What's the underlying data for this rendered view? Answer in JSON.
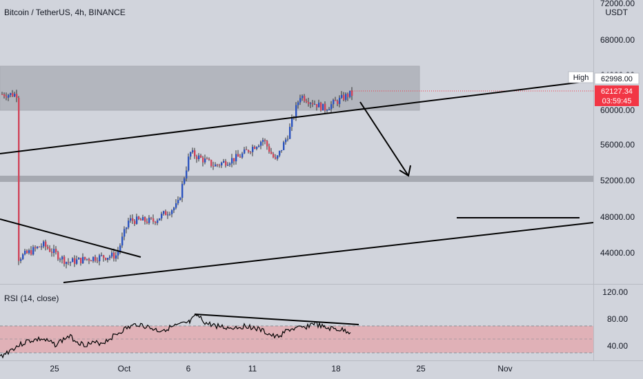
{
  "header": {
    "symbol_title": "Bitcoin / TetherUS, 4h, BINANCE"
  },
  "price_axis": {
    "currency_label": "USDT",
    "top_partial_label": "72000.00",
    "ticks": [
      "68000.00",
      "64000.00",
      "60000.00",
      "56000.00",
      "52000.00",
      "48000.00",
      "44000.00"
    ]
  },
  "badges": {
    "high_tag": "High",
    "high_value": "62998.00",
    "last_price": "62127.34",
    "countdown": "03:59:45"
  },
  "rsi": {
    "label": "RSI (14, close)",
    "ticks": [
      "120.00",
      "80.00",
      "40.00"
    ]
  },
  "time_axis": {
    "ticks": [
      "25",
      "Oct",
      "6",
      "11",
      "18",
      "25",
      "Nov"
    ]
  },
  "colors": {
    "background": "#d1d4dc",
    "up_candle": "#2a52be",
    "down_candle": "#d0455a",
    "zone": "#9b9ea6",
    "rsi_band": "#e3aab0",
    "last_price_badge": "#f23645",
    "trendline": "#000000"
  },
  "chart_data": [
    {
      "type": "candlestick",
      "title": "Bitcoin / TetherUS, 4h, BINANCE",
      "y_unit": "USDT",
      "ylim": [
        42000,
        72000
      ],
      "x_ticks": [
        "25",
        "Oct",
        "6",
        "11",
        "18",
        "25",
        "Nov"
      ],
      "last_price": 62127.34,
      "high": 62998.0,
      "approx_close_path": [
        [
          "Sep 22",
          43500
        ],
        [
          "Sep 24",
          45000
        ],
        [
          "Sep 26",
          43000
        ],
        [
          "Sep 28",
          43500
        ],
        [
          "Sep 30",
          43800
        ],
        [
          "Oct 1",
          47800
        ],
        [
          "Oct 3",
          47700
        ],
        [
          "Oct 5",
          49500
        ],
        [
          "Oct 6",
          55500
        ],
        [
          "Oct 8",
          54000
        ],
        [
          "Oct 10",
          55000
        ],
        [
          "Oct 12",
          57000
        ],
        [
          "Oct 13",
          54500
        ],
        [
          "Oct 14",
          57500
        ],
        [
          "Oct 15",
          62000
        ],
        [
          "Oct 17",
          60500
        ],
        [
          "Oct 19",
          62127.34
        ]
      ],
      "supply_zone": [
        60000,
        64400
      ],
      "support_zone": [
        52000,
        52600
      ],
      "grid": false
    },
    {
      "type": "line",
      "title": "RSI (14, close)",
      "ylim": [
        0,
        120
      ],
      "band": [
        30,
        70
      ],
      "y_ticks": [
        120,
        80,
        40
      ]
    }
  ]
}
